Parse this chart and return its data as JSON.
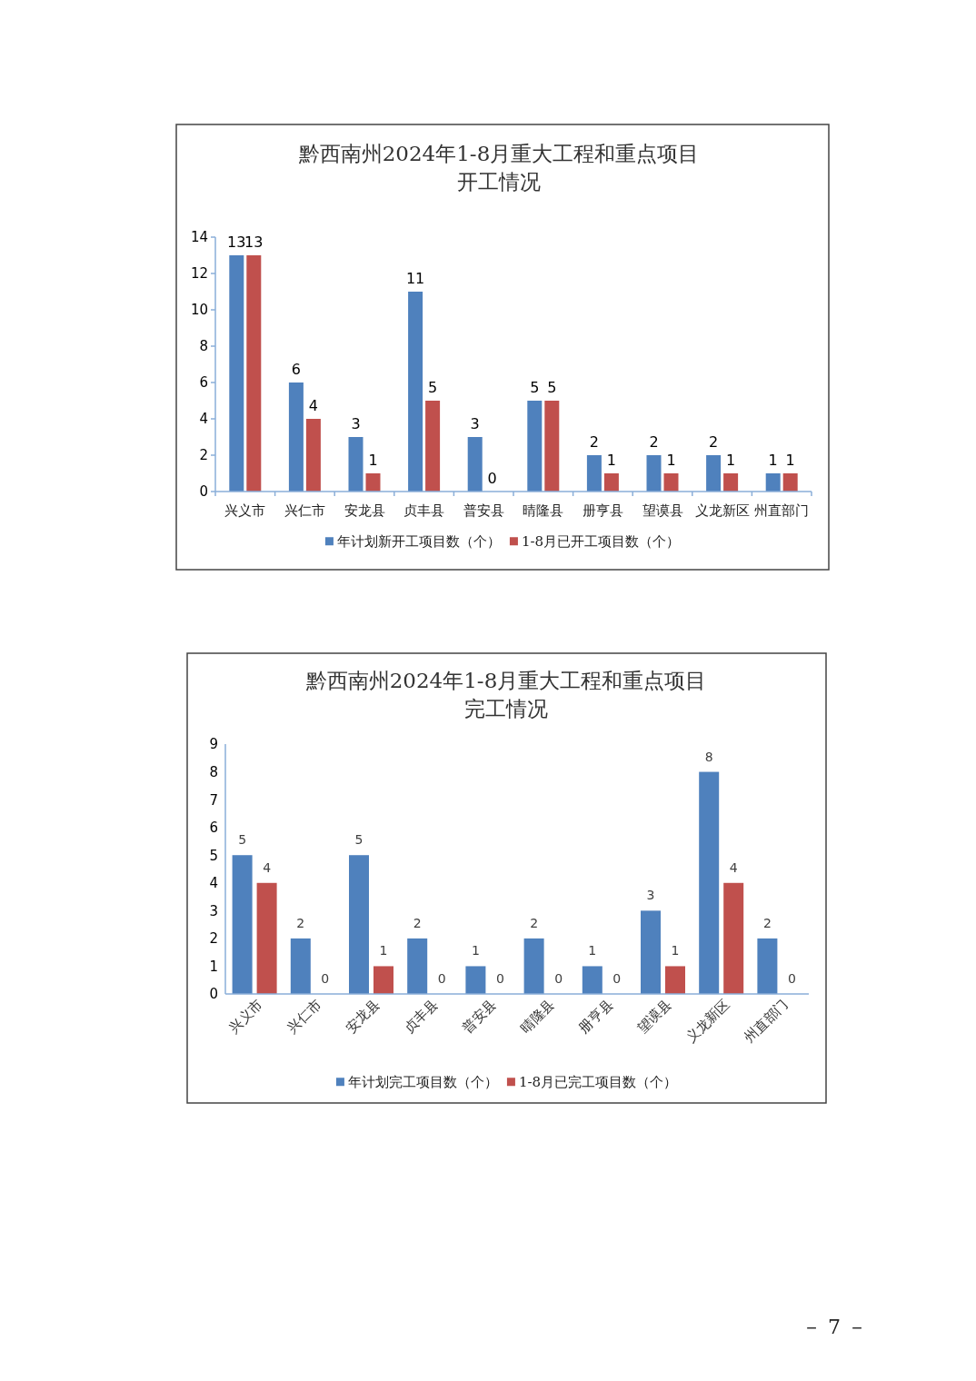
{
  "chart_data": [
    {
      "type": "bar",
      "title": "黔西南州2024年1-8月重大工程和重点项目开工情况",
      "categories": [
        "兴义市",
        "兴仁市",
        "安龙县",
        "贞丰县",
        "普安县",
        "晴隆县",
        "册亨县",
        "望谟县",
        "义龙新区",
        "州直部门"
      ],
      "series": [
        {
          "name": "年计划新开工项目数（个）",
          "color": "#4f81bd",
          "values": [
            13,
            6,
            3,
            11,
            3,
            5,
            2,
            2,
            2,
            1
          ]
        },
        {
          "name": "1-8月已开工项目数（个）",
          "color": "#c0504d",
          "values": [
            13,
            4,
            1,
            5,
            0,
            5,
            1,
            1,
            1,
            1
          ]
        }
      ],
      "ylim": [
        0,
        14
      ],
      "yticks": [
        0,
        2,
        4,
        6,
        8,
        10,
        12,
        14
      ],
      "data_labels": true,
      "legend": "bottom"
    },
    {
      "type": "bar",
      "title": "黔西南州2024年1-8月重大工程和重点项目完工情况",
      "categories": [
        "兴义市",
        "兴仁市",
        "安龙县",
        "贞丰县",
        "普安县",
        "晴隆县",
        "册亨县",
        "望谟县",
        "义龙新区",
        "州直部门"
      ],
      "series": [
        {
          "name": "年计划完工项目数（个）",
          "color": "#4f81bd",
          "values": [
            5,
            2,
            5,
            2,
            1,
            2,
            1,
            3,
            8,
            2
          ]
        },
        {
          "name": "1-8月已完工项目数（个）",
          "color": "#c0504d",
          "values": [
            4,
            0,
            1,
            0,
            0,
            0,
            0,
            1,
            4,
            0
          ]
        }
      ],
      "ylim": [
        0,
        9
      ],
      "yticks": [
        0,
        1,
        2,
        3,
        4,
        5,
        6,
        7,
        8,
        9
      ],
      "data_labels": true,
      "legend": "bottom",
      "annotations": [
        "－ 7 －"
      ]
    }
  ]
}
